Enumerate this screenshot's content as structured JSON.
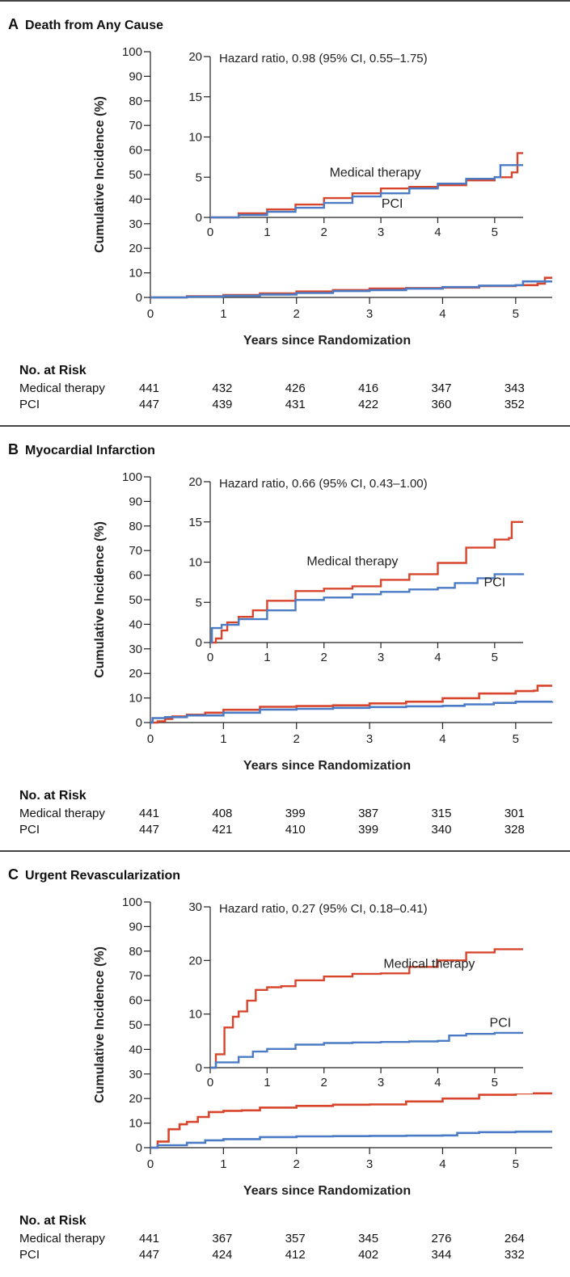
{
  "colors": {
    "medical": "#d7462c",
    "pci": "#4a7bc4",
    "axis": "#222"
  },
  "common": {
    "ylabel": "Cumulative Incidence (%)",
    "xlabel": "Years since Randomization",
    "risk_title": "No. at Risk",
    "risk_groups": [
      "Medical therapy",
      "PCI"
    ]
  },
  "chart_data": [
    {
      "type": "line",
      "letter": "A",
      "title": "Death from Any Cause",
      "xlabel": "Years since Randomization",
      "ylabel": "Cumulative Incidence (%)",
      "xlim": [
        0,
        5.5
      ],
      "ylim": [
        0,
        100
      ],
      "xticks": [
        0,
        1,
        2,
        3,
        4,
        5
      ],
      "yticks": [
        0,
        10,
        20,
        30,
        40,
        50,
        60,
        70,
        80,
        90,
        100
      ],
      "series": [
        {
          "name": "Medical therapy",
          "points": [
            [
              0,
              0
            ],
            [
              0.5,
              0.5
            ],
            [
              1,
              1.0
            ],
            [
              1.5,
              1.6
            ],
            [
              2,
              2.4
            ],
            [
              2.5,
              3.0
            ],
            [
              3,
              3.6
            ],
            [
              3.5,
              3.8
            ],
            [
              4,
              4.0
            ],
            [
              4.5,
              4.6
            ],
            [
              5,
              5.0
            ],
            [
              5.3,
              5.6
            ],
            [
              5.4,
              8.0
            ],
            [
              5.5,
              8.0
            ]
          ]
        },
        {
          "name": "PCI",
          "points": [
            [
              0,
              0
            ],
            [
              0.5,
              0.3
            ],
            [
              1,
              0.7
            ],
            [
              1.5,
              1.2
            ],
            [
              2,
              1.8
            ],
            [
              2.5,
              2.6
            ],
            [
              3,
              3.0
            ],
            [
              3.5,
              3.6
            ],
            [
              4,
              4.2
            ],
            [
              4.5,
              4.8
            ],
            [
              5,
              5.0
            ],
            [
              5.1,
              6.5
            ],
            [
              5.5,
              6.5
            ]
          ]
        }
      ],
      "inset": {
        "ylim": [
          0,
          20
        ],
        "yticks": [
          0,
          5,
          10,
          15,
          20
        ],
        "xticks": [
          0,
          1,
          2,
          3,
          4,
          5
        ],
        "annotation": "Hazard ratio, 0.98 (95% CI, 0.55–1.75)",
        "labels": [
          {
            "text": "Medical therapy",
            "x": 2.9,
            "y": 5.1
          },
          {
            "text": "PCI",
            "x": 3.2,
            "y": 1.2
          }
        ]
      },
      "risk": {
        "ticks": [
          0,
          1,
          2,
          3,
          4,
          5
        ],
        "medical": [
          441,
          432,
          426,
          416,
          347,
          343
        ],
        "pci": [
          447,
          439,
          431,
          422,
          360,
          352
        ]
      }
    },
    {
      "type": "line",
      "letter": "B",
      "title": "Myocardial Infarction",
      "xlabel": "Years since Randomization",
      "ylabel": "Cumulative Incidence (%)",
      "xlim": [
        0,
        5.5
      ],
      "ylim": [
        0,
        100
      ],
      "xticks": [
        0,
        1,
        2,
        3,
        4,
        5
      ],
      "yticks": [
        0,
        10,
        20,
        30,
        40,
        50,
        60,
        70,
        80,
        90,
        100
      ],
      "series": [
        {
          "name": "Medical therapy",
          "points": [
            [
              0,
              0
            ],
            [
              0.1,
              0.5
            ],
            [
              0.2,
              1.5
            ],
            [
              0.3,
              2.5
            ],
            [
              0.5,
              3.2
            ],
            [
              0.75,
              4.0
            ],
            [
              1,
              5.2
            ],
            [
              1.5,
              6.4
            ],
            [
              2,
              6.7
            ],
            [
              2.5,
              7.0
            ],
            [
              3,
              7.8
            ],
            [
              3.5,
              8.5
            ],
            [
              4,
              9.9
            ],
            [
              4.5,
              11.8
            ],
            [
              5,
              12.8
            ],
            [
              5.25,
              13.0
            ],
            [
              5.3,
              15.0
            ],
            [
              5.5,
              15.0
            ]
          ]
        },
        {
          "name": "PCI",
          "points": [
            [
              0,
              0
            ],
            [
              0.03,
              1.8
            ],
            [
              0.2,
              2.2
            ],
            [
              0.5,
              2.9
            ],
            [
              1,
              4.0
            ],
            [
              1.5,
              5.3
            ],
            [
              2,
              5.6
            ],
            [
              2.5,
              6.0
            ],
            [
              3,
              6.3
            ],
            [
              3.5,
              6.6
            ],
            [
              4,
              6.8
            ],
            [
              4.3,
              7.4
            ],
            [
              4.7,
              8.0
            ],
            [
              5,
              8.5
            ],
            [
              5.5,
              8.6
            ]
          ]
        }
      ],
      "inset": {
        "ylim": [
          0,
          20
        ],
        "yticks": [
          0,
          5,
          10,
          15,
          20
        ],
        "xticks": [
          0,
          1,
          2,
          3,
          4,
          5
        ],
        "annotation": "Hazard ratio, 0.66 (95% CI, 0.43–1.00)",
        "labels": [
          {
            "text": "Medical therapy",
            "x": 2.5,
            "y": 9.6
          },
          {
            "text": "PCI",
            "x": 5.0,
            "y": 7.0
          }
        ]
      },
      "risk": {
        "ticks": [
          0,
          1,
          2,
          3,
          4,
          5
        ],
        "medical": [
          441,
          408,
          399,
          387,
          315,
          301
        ],
        "pci": [
          447,
          421,
          410,
          399,
          340,
          328
        ]
      }
    },
    {
      "type": "line",
      "letter": "C",
      "title": "Urgent Revascularization",
      "xlabel": "Years since Randomization",
      "ylabel": "Cumulative Incidence (%)",
      "xlim": [
        0,
        5.5
      ],
      "ylim": [
        0,
        100
      ],
      "xticks": [
        0,
        1,
        2,
        3,
        4,
        5
      ],
      "yticks": [
        0,
        10,
        20,
        30,
        40,
        50,
        60,
        70,
        80,
        90,
        100
      ],
      "series": [
        {
          "name": "Medical therapy",
          "points": [
            [
              0,
              0
            ],
            [
              0.1,
              2.5
            ],
            [
              0.25,
              7.5
            ],
            [
              0.4,
              9.5
            ],
            [
              0.5,
              10.5
            ],
            [
              0.65,
              12.5
            ],
            [
              0.8,
              14.5
            ],
            [
              1,
              15.0
            ],
            [
              1.25,
              15.2
            ],
            [
              1.5,
              16.3
            ],
            [
              2,
              17.0
            ],
            [
              2.5,
              17.5
            ],
            [
              3,
              17.6
            ],
            [
              3.5,
              18.8
            ],
            [
              4,
              20.0
            ],
            [
              4.5,
              21.5
            ],
            [
              5,
              22.1
            ],
            [
              5.5,
              22.1
            ]
          ]
        },
        {
          "name": "PCI",
          "points": [
            [
              0,
              0
            ],
            [
              0.1,
              1.0
            ],
            [
              0.5,
              2.0
            ],
            [
              0.75,
              3.0
            ],
            [
              1,
              3.5
            ],
            [
              1.5,
              4.3
            ],
            [
              2,
              4.6
            ],
            [
              2.5,
              4.7
            ],
            [
              3,
              4.8
            ],
            [
              3.5,
              4.9
            ],
            [
              4,
              5.0
            ],
            [
              4.2,
              6.0
            ],
            [
              4.5,
              6.3
            ],
            [
              5,
              6.5
            ],
            [
              5.5,
              6.5
            ]
          ]
        }
      ],
      "inset": {
        "ylim": [
          0,
          30
        ],
        "yticks": [
          0,
          10,
          20,
          30
        ],
        "xticks": [
          0,
          1,
          2,
          3,
          4,
          5
        ],
        "annotation": "Hazard ratio, 0.27 (95% CI, 0.18–0.41)",
        "labels": [
          {
            "text": "Medical therapy",
            "x": 3.85,
            "y": 18.6
          },
          {
            "text": "PCI",
            "x": 5.1,
            "y": 7.6
          }
        ]
      },
      "risk": {
        "ticks": [
          0,
          1,
          2,
          3,
          4,
          5
        ],
        "medical": [
          441,
          367,
          357,
          345,
          276,
          264
        ],
        "pci": [
          447,
          424,
          412,
          402,
          344,
          332
        ]
      }
    }
  ]
}
